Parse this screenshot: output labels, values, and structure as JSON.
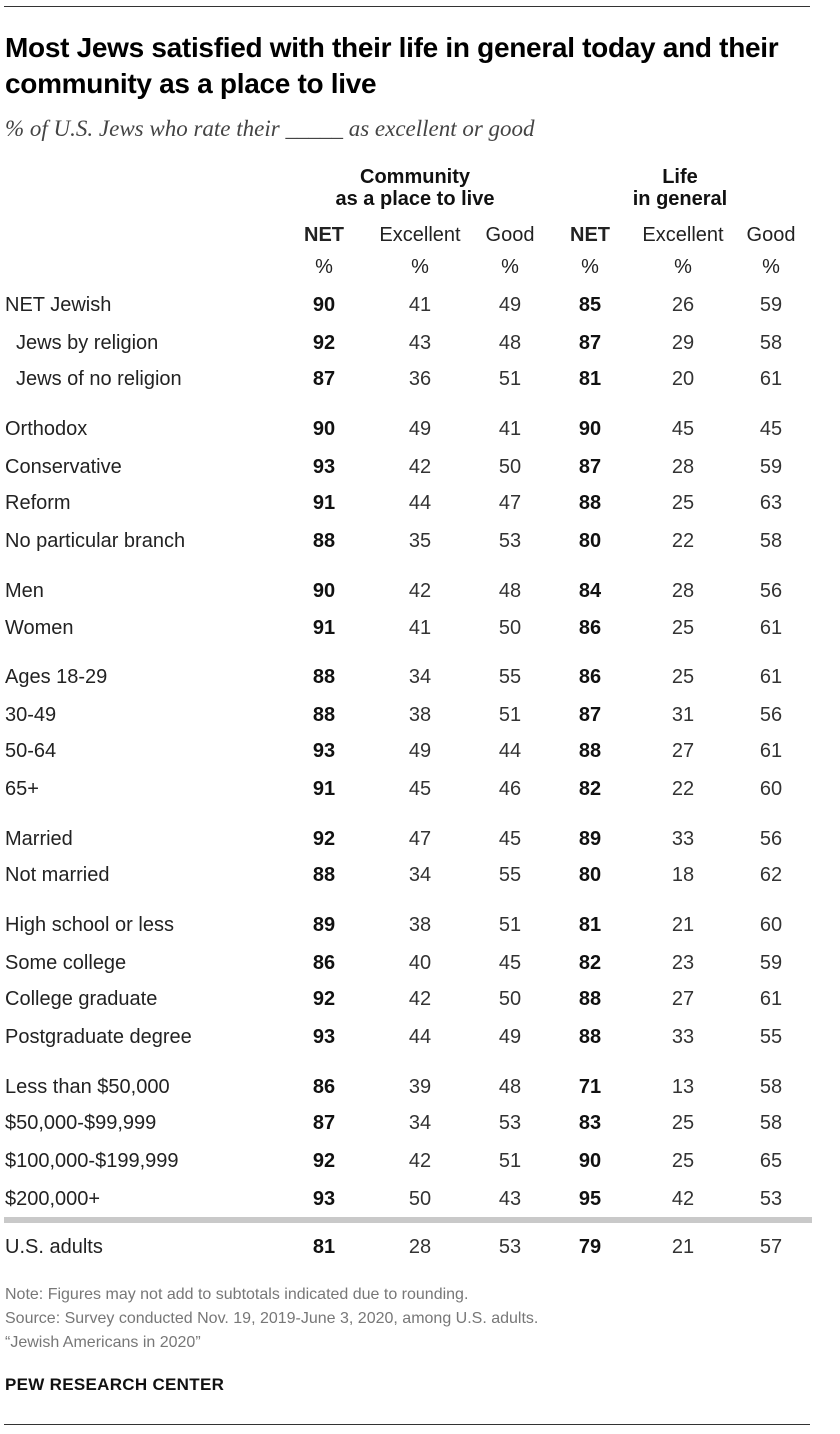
{
  "title": "Most Jews satisfied with their life in general today and their community as a place to live",
  "subtitle": "% of U.S. Jews who rate their _____ as excellent or good",
  "groups": {
    "community": "Community\nas a place to live",
    "life": "Life\nin general"
  },
  "columns": [
    "NET",
    "Excellent",
    "Good",
    "NET",
    "Excellent",
    "Good"
  ],
  "unit": "%",
  "chart_data": {
    "type": "table",
    "column_groups": [
      {
        "name": "Community as a place to live",
        "columns": [
          "NET",
          "Excellent",
          "Good"
        ]
      },
      {
        "name": "Life in general",
        "columns": [
          "NET",
          "Excellent",
          "Good"
        ]
      }
    ],
    "rows": [
      {
        "label": "NET Jewish",
        "values": [
          90,
          41,
          49,
          85,
          26,
          59
        ]
      },
      {
        "label": "Jews by religion",
        "values": [
          92,
          43,
          48,
          87,
          29,
          58
        ],
        "indent": true
      },
      {
        "label": "Jews of no religion",
        "values": [
          87,
          36,
          51,
          81,
          20,
          61
        ],
        "indent": true
      },
      {
        "label": "Orthodox",
        "values": [
          90,
          49,
          41,
          90,
          45,
          45
        ]
      },
      {
        "label": "Conservative",
        "values": [
          93,
          42,
          50,
          87,
          28,
          59
        ]
      },
      {
        "label": "Reform",
        "values": [
          91,
          44,
          47,
          88,
          25,
          63
        ]
      },
      {
        "label": "No particular branch",
        "values": [
          88,
          35,
          53,
          80,
          22,
          58
        ]
      },
      {
        "label": "Men",
        "values": [
          90,
          42,
          48,
          84,
          28,
          56
        ]
      },
      {
        "label": "Women",
        "values": [
          91,
          41,
          50,
          86,
          25,
          61
        ]
      },
      {
        "label": "Ages 18-29",
        "values": [
          88,
          34,
          55,
          86,
          25,
          61
        ]
      },
      {
        "label": "30-49",
        "values": [
          88,
          38,
          51,
          87,
          31,
          56
        ]
      },
      {
        "label": "50-64",
        "values": [
          93,
          49,
          44,
          88,
          27,
          61
        ]
      },
      {
        "label": "65+",
        "values": [
          91,
          45,
          46,
          82,
          22,
          60
        ]
      },
      {
        "label": "Married",
        "values": [
          92,
          47,
          45,
          89,
          33,
          56
        ]
      },
      {
        "label": "Not married",
        "values": [
          88,
          34,
          55,
          80,
          18,
          62
        ]
      },
      {
        "label": "High school or less",
        "values": [
          89,
          38,
          51,
          81,
          21,
          60
        ]
      },
      {
        "label": "Some college",
        "values": [
          86,
          40,
          45,
          82,
          23,
          59
        ]
      },
      {
        "label": "College graduate",
        "values": [
          92,
          42,
          50,
          88,
          27,
          61
        ]
      },
      {
        "label": "Postgraduate degree",
        "values": [
          93,
          44,
          49,
          88,
          33,
          55
        ]
      },
      {
        "label": "Less than $50,000",
        "values": [
          86,
          39,
          48,
          71,
          13,
          58
        ]
      },
      {
        "label": "$50,000-$99,999",
        "values": [
          87,
          34,
          53,
          83,
          25,
          58
        ]
      },
      {
        "label": "$100,000-$199,999",
        "values": [
          92,
          42,
          51,
          90,
          25,
          65
        ]
      },
      {
        "label": "$200,000+",
        "values": [
          93,
          50,
          43,
          95,
          42,
          53
        ]
      },
      {
        "label": "U.S. adults",
        "values": [
          81,
          28,
          53,
          79,
          21,
          57
        ]
      }
    ]
  },
  "notes": {
    "note": "Note: Figures may not add to subtotals indicated due to rounding.",
    "source": "Source: Survey conducted Nov. 19, 2019-June 3, 2020, among U.S. adults.",
    "report": "“Jewish Americans in 2020”",
    "org": "PEW RESEARCH CENTER"
  },
  "colors": {
    "title": "#000000",
    "text": "#222222",
    "note": "#777777",
    "separator": "#c9c9c9"
  }
}
